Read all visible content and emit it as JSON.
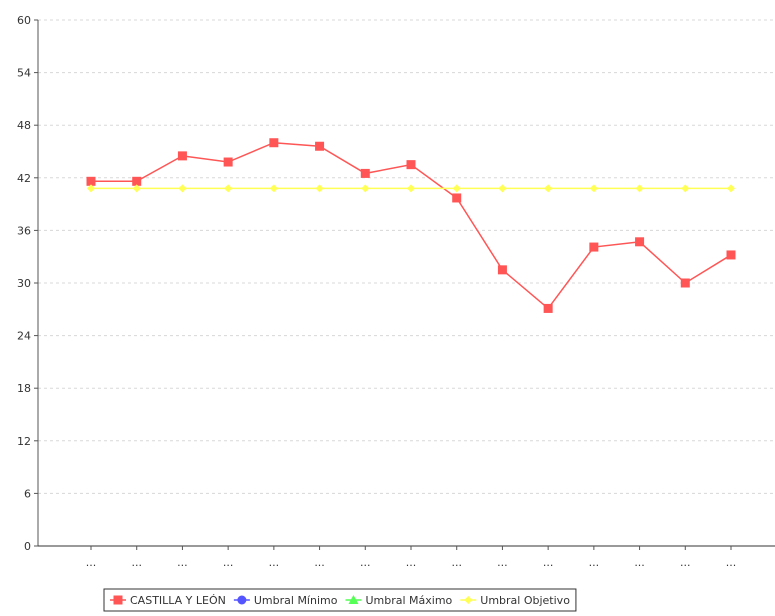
{
  "chart_data": {
    "type": "line",
    "categories": [
      "...",
      "...",
      "...",
      "...",
      "...",
      "...",
      "...",
      "...",
      "...",
      "...",
      "...",
      "...",
      "...",
      "...",
      "..."
    ],
    "series": [
      {
        "name": "CASTILLA Y LEÓN",
        "color": "#ff5555",
        "marker": "square",
        "values": [
          41.6,
          41.6,
          44.5,
          43.8,
          46.0,
          45.6,
          42.5,
          43.5,
          39.7,
          31.5,
          27.1,
          34.1,
          34.7,
          30.0,
          33.2
        ]
      },
      {
        "name": "Umbral Mínimo",
        "color": "#5555ff",
        "marker": "circle",
        "values": [
          null,
          null,
          null,
          null,
          null,
          null,
          null,
          null,
          null,
          null,
          null,
          null,
          null,
          null,
          null
        ]
      },
      {
        "name": "Umbral Máximo",
        "color": "#55ff55",
        "marker": "triangle",
        "values": [
          null,
          null,
          null,
          null,
          null,
          null,
          null,
          null,
          null,
          null,
          null,
          null,
          null,
          null,
          null
        ]
      },
      {
        "name": "Umbral Objetivo",
        "color": "#ffff55",
        "marker": "diamond",
        "values": [
          40.8,
          40.8,
          40.8,
          40.8,
          40.8,
          40.8,
          40.8,
          40.8,
          40.8,
          40.8,
          40.8,
          40.8,
          40.8,
          40.8,
          40.8
        ]
      }
    ],
    "ylim": [
      0,
      60
    ],
    "yticks": [
      0,
      6,
      12,
      18,
      24,
      30,
      36,
      42,
      48,
      54,
      60
    ],
    "grid": true,
    "legend": "bottom"
  }
}
